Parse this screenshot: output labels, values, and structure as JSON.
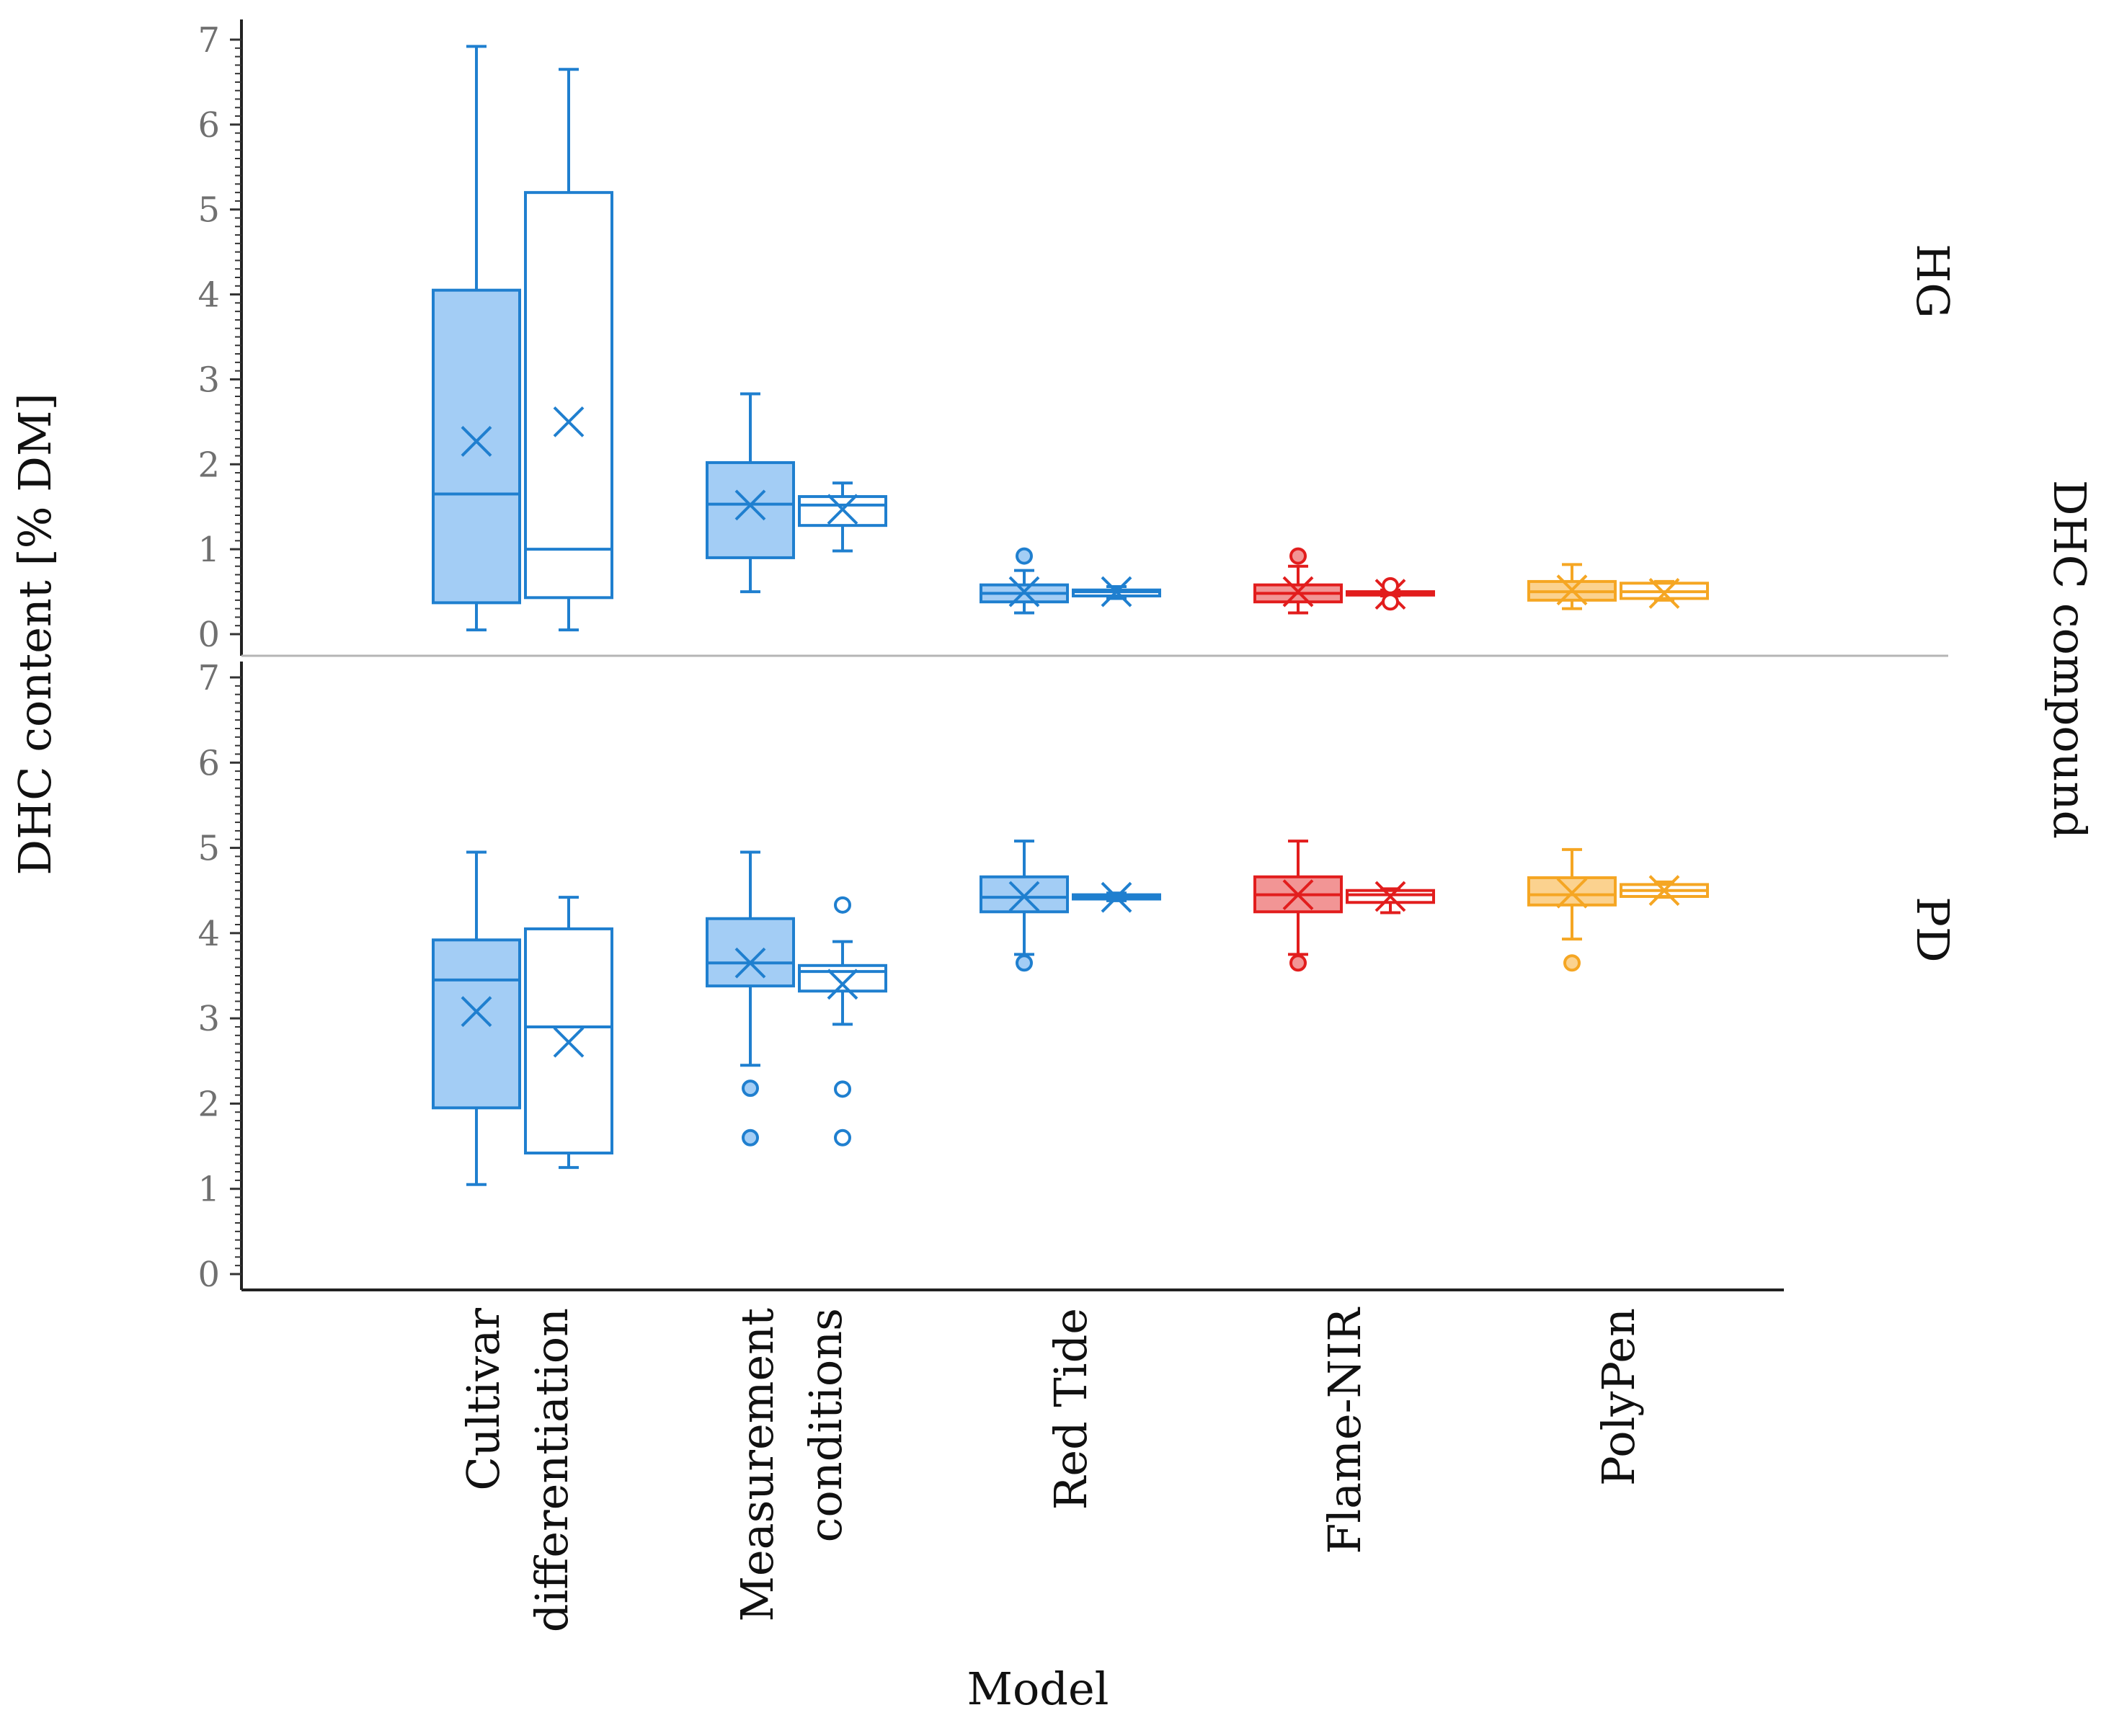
{
  "chart_data": {
    "type": "boxplot",
    "xlabel": "Model",
    "ylabel": "DHC content [% DM]",
    "facet_title": "DHC compound",
    "ylim": [
      0,
      7
    ],
    "yticks": [
      "0",
      "1",
      "2",
      "3",
      "4",
      "5",
      "6",
      "7"
    ],
    "colors": {
      "blue_stroke": "#1f7fcf",
      "blue_fill": "#a3cdf5",
      "red_stroke": "#e21d1d",
      "red_fill": "#f29595",
      "orange_stroke": "#f5a623",
      "orange_fill": "#fbd28f"
    },
    "categories": [
      {
        "id": "cultivar",
        "lines": [
          "Cultivar",
          "differentiation"
        ],
        "color": "blue"
      },
      {
        "id": "measurement",
        "lines": [
          "Measurement",
          "conditions"
        ],
        "color": "blue"
      },
      {
        "id": "redtide",
        "lines": [
          "Red Tide"
        ],
        "color": "blue"
      },
      {
        "id": "flame",
        "lines": [
          "Flame-NIR"
        ],
        "color": "red"
      },
      {
        "id": "polypen",
        "lines": [
          "PolyPen"
        ],
        "color": "orange"
      }
    ],
    "panels": [
      {
        "facet": "HG",
        "boxes": [
          {
            "category": "cultivar",
            "set": "filled",
            "min": 0.05,
            "q1": 0.37,
            "median": 1.65,
            "q3": 4.05,
            "max": 6.92,
            "mean": 2.27,
            "outliers": []
          },
          {
            "category": "cultivar",
            "set": "open",
            "min": 0.05,
            "q1": 0.43,
            "median": 1.0,
            "q3": 5.2,
            "max": 6.65,
            "mean": 2.5,
            "outliers": []
          },
          {
            "category": "measurement",
            "set": "filled",
            "min": 0.5,
            "q1": 0.9,
            "median": 1.53,
            "q3": 2.02,
            "max": 2.83,
            "mean": 1.52,
            "outliers": []
          },
          {
            "category": "measurement",
            "set": "open",
            "min": 0.98,
            "q1": 1.28,
            "median": 1.52,
            "q3": 1.62,
            "max": 1.78,
            "mean": 1.47,
            "outliers": []
          },
          {
            "category": "redtide",
            "set": "filled",
            "min": 0.25,
            "q1": 0.38,
            "median": 0.48,
            "q3": 0.58,
            "max": 0.75,
            "mean": 0.5,
            "outliers": [
              0.92
            ]
          },
          {
            "category": "redtide",
            "set": "open",
            "min": 0.42,
            "q1": 0.45,
            "median": 0.5,
            "q3": 0.52,
            "max": 0.56,
            "mean": 0.5,
            "outliers": []
          },
          {
            "category": "flame",
            "set": "filled",
            "min": 0.25,
            "q1": 0.38,
            "median": 0.48,
            "q3": 0.58,
            "max": 0.8,
            "mean": 0.5,
            "outliers": [
              0.92
            ]
          },
          {
            "category": "flame",
            "set": "open",
            "min": 0.45,
            "q1": 0.46,
            "median": 0.48,
            "q3": 0.5,
            "max": 0.52,
            "mean": 0.47,
            "outliers": [
              0.38,
              0.57
            ]
          },
          {
            "category": "polypen",
            "set": "filled",
            "min": 0.3,
            "q1": 0.4,
            "median": 0.5,
            "q3": 0.62,
            "max": 0.82,
            "mean": 0.52,
            "outliers": []
          },
          {
            "category": "polypen",
            "set": "open",
            "min": 0.4,
            "q1": 0.42,
            "median": 0.5,
            "q3": 0.6,
            "max": 0.62,
            "mean": 0.48,
            "outliers": []
          }
        ]
      },
      {
        "facet": "PD",
        "boxes": [
          {
            "category": "cultivar",
            "set": "filled",
            "min": 1.05,
            "q1": 1.95,
            "median": 3.45,
            "q3": 3.92,
            "max": 4.95,
            "mean": 3.08,
            "outliers": []
          },
          {
            "category": "cultivar",
            "set": "open",
            "min": 1.25,
            "q1": 1.42,
            "median": 2.9,
            "q3": 4.05,
            "max": 4.42,
            "mean": 2.72,
            "outliers": []
          },
          {
            "category": "measurement",
            "set": "filled",
            "min": 2.45,
            "q1": 3.38,
            "median": 3.65,
            "q3": 4.17,
            "max": 4.95,
            "mean": 3.65,
            "outliers": [
              2.18,
              1.6
            ]
          },
          {
            "category": "measurement",
            "set": "open",
            "min": 2.93,
            "q1": 3.32,
            "median": 3.55,
            "q3": 3.62,
            "max": 3.9,
            "mean": 3.4,
            "outliers": [
              4.33,
              2.17,
              1.6
            ]
          },
          {
            "category": "redtide",
            "set": "filled",
            "min": 3.75,
            "q1": 4.25,
            "median": 4.42,
            "q3": 4.66,
            "max": 5.08,
            "mean": 4.43,
            "outliers": [
              3.65
            ]
          },
          {
            "category": "redtide",
            "set": "open",
            "min": 4.38,
            "q1": 4.4,
            "median": 4.42,
            "q3": 4.45,
            "max": 4.47,
            "mean": 4.42,
            "outliers": []
          },
          {
            "category": "flame",
            "set": "filled",
            "min": 3.75,
            "q1": 4.25,
            "median": 4.45,
            "q3": 4.66,
            "max": 5.08,
            "mean": 4.45,
            "outliers": [
              3.65
            ]
          },
          {
            "category": "flame",
            "set": "open",
            "min": 4.24,
            "q1": 4.36,
            "median": 4.45,
            "q3": 4.5,
            "max": 4.52,
            "mean": 4.43,
            "outliers": []
          },
          {
            "category": "polypen",
            "set": "filled",
            "min": 3.93,
            "q1": 4.33,
            "median": 4.45,
            "q3": 4.65,
            "max": 4.98,
            "mean": 4.47,
            "outliers": [
              3.65
            ]
          },
          {
            "category": "polypen",
            "set": "open",
            "min": 4.42,
            "q1": 4.43,
            "median": 4.5,
            "q3": 4.57,
            "max": 4.6,
            "mean": 4.5,
            "outliers": []
          }
        ]
      }
    ]
  }
}
